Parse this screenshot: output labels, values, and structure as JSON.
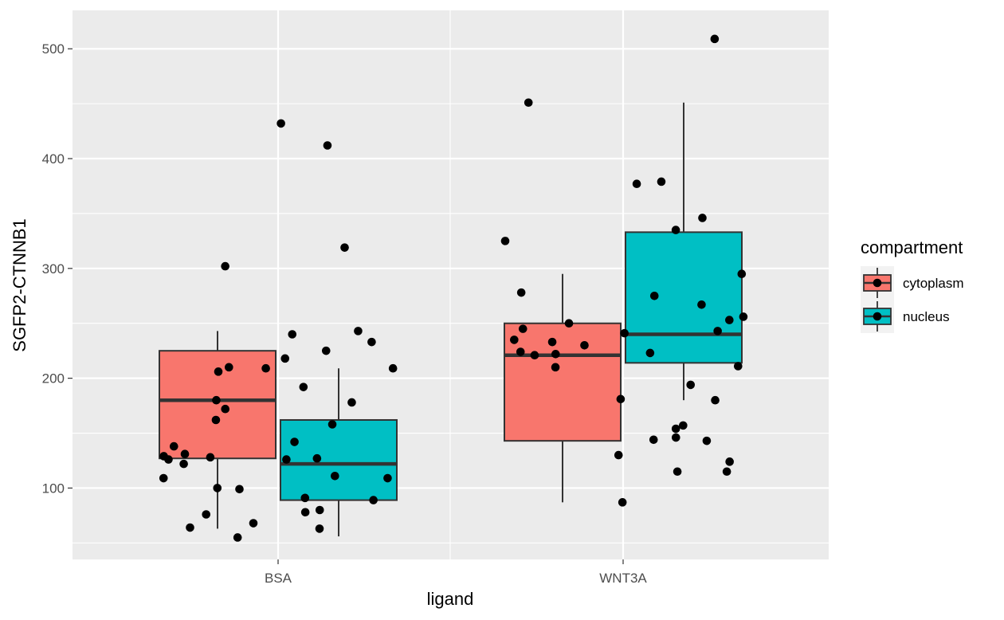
{
  "chart_data": {
    "type": "boxplot",
    "xlabel": "ligand",
    "ylabel": "SGFP2-CTNNB1",
    "categories": [
      "BSA",
      "WNT3A"
    ],
    "ylim": [
      35,
      535
    ],
    "yticks": [
      100,
      200,
      300,
      400,
      500
    ],
    "grid": true,
    "legend": {
      "title": "compartment",
      "placement": "right",
      "entries": [
        {
          "name": "cytoplasm",
          "color": "#F8766D"
        },
        {
          "name": "nucleus",
          "color": "#00BFC4"
        }
      ]
    },
    "series": [
      {
        "name": "cytoplasm",
        "color": "#F8766D",
        "boxes": [
          {
            "category": "BSA",
            "whisker_low": 63,
            "q1": 127,
            "median": 180,
            "q3": 225,
            "whisker_high": 243
          },
          {
            "category": "WNT3A",
            "whisker_low": 87,
            "q1": 143,
            "median": 221,
            "q3": 250,
            "whisker_high": 295
          }
        ],
        "points": [
          {
            "category": "BSA",
            "values": [
              180,
              172,
              126,
              131,
              128,
              206,
              129,
              209,
              210,
              76,
              64,
              68,
              55,
              109,
              100,
              122,
              99,
              138,
              302,
              162
            ]
          },
          {
            "category": "WNT3A",
            "values": [
              278,
              325,
              130,
              87,
              235,
              210,
              181,
              245,
              233,
              250,
              230,
              221,
              224,
              241,
              222,
              451
            ]
          }
        ]
      },
      {
        "name": "nucleus",
        "color": "#00BFC4",
        "boxes": [
          {
            "category": "BSA",
            "whisker_low": 56,
            "q1": 89,
            "median": 122,
            "q3": 162,
            "whisker_high": 209
          },
          {
            "category": "WNT3A",
            "whisker_low": 180,
            "q1": 214,
            "median": 240,
            "q3": 333,
            "whisker_high": 451
          }
        ],
        "points": [
          {
            "category": "BSA",
            "values": [
              319,
              127,
              142,
              89,
              80,
              63,
              218,
              209,
              78,
              109,
              111,
              91,
              178,
              225,
              233,
              243,
              240,
              192,
              158,
              126,
              432,
              412
            ]
          },
          {
            "category": "WNT3A",
            "values": [
              143,
              346,
              295,
              379,
              335,
              157,
              154,
              115,
              115,
              146,
              144,
              223,
              509,
              377,
              275,
              243,
              253,
              256,
              211,
              124,
              180,
              267,
              194
            ]
          }
        ]
      }
    ]
  }
}
